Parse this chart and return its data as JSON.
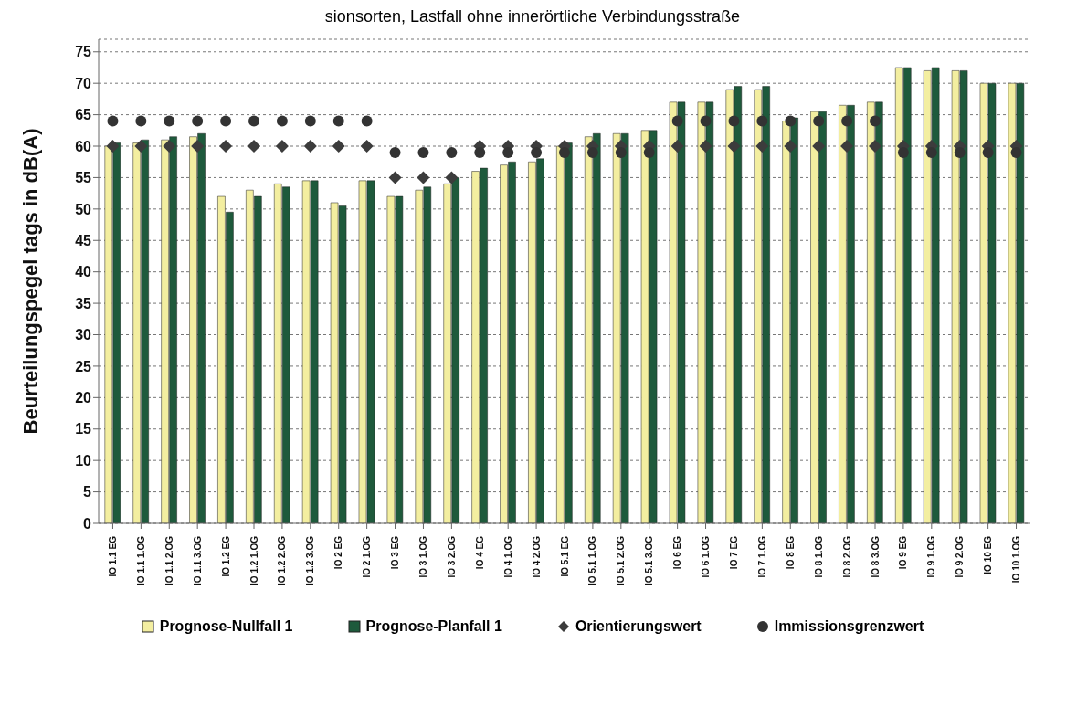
{
  "chart_data": {
    "type": "bar",
    "title": "sionsorten, Lastfall ohne innerörtliche Verbindungsstraße",
    "ylabel": "Beurteilungspegel tags in dB(A)",
    "categories": [
      "IO 1.1 EG",
      "IO 1.1 1.OG",
      "IO 1.1 2.OG",
      "IO 1.1 3.OG",
      "IO 1.2 EG",
      "IO 1.2 1.OG",
      "IO 1.2 2.OG",
      "IO 1.2 3.OG",
      "IO 2 EG",
      "IO 2 1.OG",
      "IO 3 EG",
      "IO 3 1.OG",
      "IO 3 2.OG",
      "IO 4 EG",
      "IO 4 1.OG",
      "IO 4 2.OG",
      "IO 5.1 EG",
      "IO 5.1 1.OG",
      "IO 5.1 2.OG",
      "IO 5.1 3.OG",
      "IO 6 EG",
      "IO 6 1.OG",
      "IO 7 EG",
      "IO 7 1.OG",
      "IO 8 EG",
      "IO 8 1.OG",
      "IO 8 2.OG",
      "IO 8 3.OG",
      "IO 9 EG",
      "IO 9 1.OG",
      "IO 9 2.OG",
      "IO 10 EG",
      "IO 10 1.OG"
    ],
    "series": [
      {
        "name": "Prognose-Nullfall 1",
        "color": "#f3eea0",
        "values": [
          60,
          60.5,
          61,
          61.5,
          52,
          53,
          54,
          54.5,
          51,
          54.5,
          52,
          53,
          54,
          56,
          57,
          57.5,
          60,
          61.5,
          62,
          62.5,
          67,
          67,
          69,
          69,
          64,
          65.5,
          66.5,
          67,
          72.5,
          72,
          72,
          70,
          70
        ]
      },
      {
        "name": "Prognose-Planfall 1",
        "color": "#1e5a3c",
        "values": [
          60.5,
          61,
          61.5,
          62,
          49.5,
          52,
          53.5,
          54.5,
          50.5,
          54.5,
          52,
          53.5,
          55,
          56.5,
          57.5,
          58,
          60.5,
          62,
          62,
          62.5,
          67,
          67,
          69.5,
          69.5,
          64.5,
          65.5,
          66.5,
          67,
          72.5,
          72.5,
          72,
          70,
          70
        ]
      },
      {
        "name": "Orientierungswert",
        "type": "scatter",
        "marker": "diamond",
        "color": "#3c3c3c",
        "values": [
          60,
          60,
          60,
          60,
          60,
          60,
          60,
          60,
          60,
          60,
          55,
          55,
          55,
          60,
          60,
          60,
          60,
          60,
          60,
          60,
          60,
          60,
          60,
          60,
          60,
          60,
          60,
          60,
          60,
          60,
          60,
          60,
          60
        ]
      },
      {
        "name": "Immissionsgrenzwert",
        "type": "scatter",
        "marker": "circle",
        "color": "#333333",
        "values": [
          64,
          64,
          64,
          64,
          64,
          64,
          64,
          64,
          64,
          64,
          59,
          59,
          59,
          59,
          59,
          59,
          59,
          59,
          59,
          59,
          64,
          64,
          64,
          64,
          64,
          64,
          64,
          64,
          59,
          59,
          59,
          59,
          59
        ]
      }
    ],
    "ylim": [
      0,
      77
    ],
    "yticks": [
      0,
      5,
      10,
      15,
      20,
      25,
      30,
      35,
      40,
      45,
      50,
      55,
      60,
      65,
      70,
      75
    ],
    "grid": "y",
    "legend": "bottom"
  }
}
